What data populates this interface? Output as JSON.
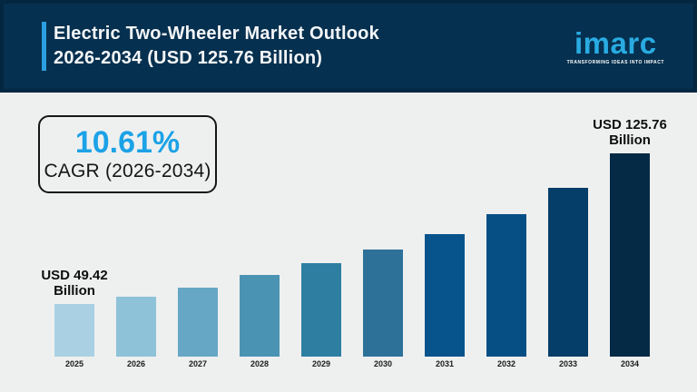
{
  "header": {
    "title_line1": "Electric Two-Wheeler Market Outlook",
    "title_line2": "2026-2034 (USD 125.76 Billion)",
    "logo": {
      "name": "imarc",
      "tagline": "TRANSFORMING IDEAS INTO IMPACT"
    }
  },
  "cagr": {
    "value": "10.61%",
    "label": "CAGR (2026-2034)"
  },
  "colors": {
    "header_bg": "#06304f",
    "title_accent": "#2b9fe0",
    "logo_blue": "#29abe2",
    "cagr_blue": "#1ca2e6",
    "page_bg": "#eef0f0"
  },
  "chart_data": {
    "type": "bar",
    "title": "Electric Two-Wheeler Market Outlook 2026-2034 (USD 125.76 Billion)",
    "unit": "USD Billion",
    "categories": [
      "2025",
      "2026",
      "2027",
      "2028",
      "2029",
      "2030",
      "2031",
      "2032",
      "2033",
      "2034"
    ],
    "values": [
      49.42,
      53,
      58,
      64,
      70,
      77,
      85,
      95,
      108,
      125.76
    ],
    "labeled_values": {
      "2025": 49.42,
      "2034": 125.76
    },
    "values_between_endpoints_estimated": true,
    "xlabel": "",
    "ylabel": "",
    "grid": false,
    "legend": false,
    "ylim_display": [
      23,
      126
    ],
    "bar_colors": [
      "#a9d1e3",
      "#8ec2d9",
      "#65a7c5",
      "#4b93b3",
      "#2e7ea2",
      "#2d7199",
      "#07538c",
      "#064f85",
      "#053e68",
      "#042a45"
    ],
    "annotations": [
      {
        "index": 0,
        "lines": [
          "USD 49.42",
          "Billion"
        ]
      },
      {
        "index": 9,
        "lines": [
          "USD 125.76",
          "Billion"
        ]
      }
    ]
  }
}
